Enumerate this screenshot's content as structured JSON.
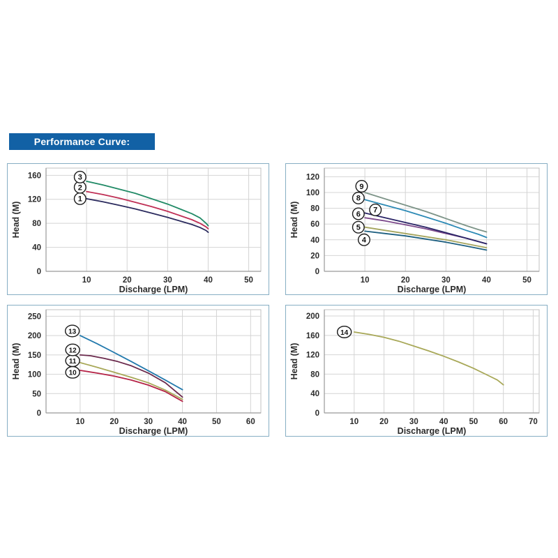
{
  "header": {
    "title": "Performance Curve:",
    "bg_color": "#1261a5",
    "text_color": "#ffffff"
  },
  "styles": {
    "panel_border_color": "#86aec4",
    "grid_color": "#d4d4d4",
    "plot_border_color": "#c0c0c0",
    "axis_color": "#999999",
    "tick_text_color": "#2b2b2b",
    "curve_label_circle_stroke": "#1a1a1a",
    "curve_label_circle_fill": "#ffffff"
  },
  "chart_data": [
    {
      "id": "chart-top-left",
      "type": "line",
      "title": "",
      "xlabel": "Discharge (LPM)",
      "ylabel": "Head (M)",
      "xlim": [
        0,
        53
      ],
      "ylim": [
        0,
        172
      ],
      "xticks": [
        10,
        20,
        30,
        40,
        50
      ],
      "yticks": [
        0,
        40,
        80,
        120,
        160
      ],
      "grid": true,
      "legend": "circled series numbers placed near curve starts",
      "series": [
        {
          "name": "1",
          "color": "#2b2b5e",
          "label_pos": [
            8.4,
            121
          ],
          "points": [
            [
              10,
              121
            ],
            [
              14,
              116
            ],
            [
              18,
              110
            ],
            [
              22,
              104
            ],
            [
              26,
              97
            ],
            [
              30,
              90
            ],
            [
              33,
              84
            ],
            [
              36,
              78
            ],
            [
              38,
              73
            ],
            [
              39.5,
              68
            ],
            [
              40,
              65
            ]
          ]
        },
        {
          "name": "2",
          "color": "#bf2f55",
          "label_pos": [
            8.4,
            140
          ],
          "points": [
            [
              10,
              133
            ],
            [
              14,
              128
            ],
            [
              18,
              122
            ],
            [
              22,
              115
            ],
            [
              26,
              108
            ],
            [
              30,
              100
            ],
            [
              33,
              93
            ],
            [
              36,
              86
            ],
            [
              38,
              80
            ],
            [
              39.5,
              74
            ],
            [
              40,
              71
            ]
          ]
        },
        {
          "name": "3",
          "color": "#218a66",
          "label_pos": [
            8.4,
            157
          ],
          "points": [
            [
              10,
              150
            ],
            [
              14,
              144
            ],
            [
              18,
              137
            ],
            [
              22,
              130
            ],
            [
              26,
              121
            ],
            [
              30,
              112
            ],
            [
              33,
              104
            ],
            [
              36,
              96
            ],
            [
              38,
              89
            ],
            [
              39.5,
              80
            ],
            [
              40,
              76
            ]
          ]
        }
      ]
    },
    {
      "id": "chart-top-right",
      "type": "line",
      "title": "",
      "xlabel": "Discharge (LPM)",
      "ylabel": "Head (M)",
      "xlim": [
        0,
        53
      ],
      "ylim": [
        0,
        131
      ],
      "xticks": [
        10,
        20,
        30,
        40,
        50
      ],
      "yticks": [
        0,
        20,
        40,
        60,
        80,
        100,
        120
      ],
      "grid": true,
      "legend": "circled series numbers placed near curve starts",
      "series": [
        {
          "name": "4",
          "color": "#1d5f80",
          "label_pos": [
            9.8,
            40
          ],
          "points": [
            [
              10,
              51
            ],
            [
              15,
              48
            ],
            [
              20,
              45
            ],
            [
              25,
              41
            ],
            [
              30,
              37
            ],
            [
              35,
              32
            ],
            [
              40,
              27
            ]
          ]
        },
        {
          "name": "5",
          "color": "#a5a55e",
          "label_pos": [
            8.4,
            56
          ],
          "points": [
            [
              10,
              56
            ],
            [
              15,
              52
            ],
            [
              20,
              48
            ],
            [
              25,
              44
            ],
            [
              30,
              40
            ],
            [
              35,
              35
            ],
            [
              40,
              30
            ]
          ]
        },
        {
          "name": "6",
          "color": "#7d4a8c",
          "label_pos": [
            8.4,
            73
          ],
          "points": [
            [
              10,
              68
            ],
            [
              15,
              64
            ],
            [
              20,
              59
            ],
            [
              25,
              54
            ],
            [
              30,
              48
            ],
            [
              35,
              42
            ],
            [
              40,
              35
            ]
          ]
        },
        {
          "name": "7",
          "color": "#2a2466",
          "label_pos": [
            12.6,
            78
          ],
          "points": [
            [
              10,
              74
            ],
            [
              15,
              68
            ],
            [
              20,
              62
            ],
            [
              25,
              56
            ],
            [
              30,
              49
            ],
            [
              35,
              42
            ],
            [
              40,
              35
            ]
          ]
        },
        {
          "name": "8",
          "color": "#2c8ab5",
          "label_pos": [
            8.4,
            93
          ],
          "points": [
            [
              10,
              91
            ],
            [
              15,
              84
            ],
            [
              20,
              77
            ],
            [
              25,
              69
            ],
            [
              30,
              61
            ],
            [
              35,
              52
            ],
            [
              38,
              47
            ],
            [
              40,
              43
            ]
          ]
        },
        {
          "name": "9",
          "color": "#7d9488",
          "label_pos": [
            9.2,
            108
          ],
          "points": [
            [
              10,
              100
            ],
            [
              15,
              92
            ],
            [
              20,
              84
            ],
            [
              25,
              76
            ],
            [
              30,
              67
            ],
            [
              35,
              58
            ],
            [
              38,
              53
            ],
            [
              40,
              50
            ]
          ]
        }
      ]
    },
    {
      "id": "chart-bottom-left",
      "type": "line",
      "title": "",
      "xlabel": "Discharge (LPM)",
      "ylabel": "Head (M)",
      "xlim": [
        0,
        63
      ],
      "ylim": [
        0,
        267
      ],
      "xticks": [
        10,
        20,
        30,
        40,
        50,
        60
      ],
      "yticks": [
        0,
        50,
        100,
        150,
        200,
        250
      ],
      "grid": true,
      "legend": "circled series numbers placed near curve starts",
      "series": [
        {
          "name": "10",
          "color": "#b52347",
          "label_pos": [
            7.8,
            105
          ],
          "points": [
            [
              10,
              110
            ],
            [
              15,
              103
            ],
            [
              20,
              95
            ],
            [
              25,
              85
            ],
            [
              30,
              72
            ],
            [
              35,
              55
            ],
            [
              40,
              30
            ]
          ]
        },
        {
          "name": "11",
          "color": "#a8a858",
          "label_pos": [
            7.8,
            135
          ],
          "points": [
            [
              10,
              130
            ],
            [
              15,
              118
            ],
            [
              20,
              105
            ],
            [
              25,
              92
            ],
            [
              30,
              78
            ],
            [
              35,
              59
            ],
            [
              40,
              35
            ]
          ]
        },
        {
          "name": "12",
          "color": "#6b2a4d",
          "label_pos": [
            7.8,
            163
          ],
          "points": [
            [
              10,
              150
            ],
            [
              13,
              148
            ],
            [
              17,
              141
            ],
            [
              21,
              133
            ],
            [
              25,
              122
            ],
            [
              30,
              103
            ],
            [
              35,
              78
            ],
            [
              40,
              41
            ]
          ]
        },
        {
          "name": "13",
          "color": "#2279ad",
          "label_pos": [
            7.7,
            212
          ],
          "points": [
            [
              10,
              200
            ],
            [
              15,
              179
            ],
            [
              20,
              156
            ],
            [
              25,
              133
            ],
            [
              30,
              109
            ],
            [
              35,
              85
            ],
            [
              40,
              60
            ]
          ]
        }
      ]
    },
    {
      "id": "chart-bottom-right",
      "type": "line",
      "title": "",
      "xlabel": "Discharge (LPM)",
      "ylabel": "Head (M)",
      "xlim": [
        0,
        72
      ],
      "ylim": [
        0,
        213
      ],
      "xticks": [
        10,
        20,
        30,
        40,
        50,
        60,
        70
      ],
      "yticks": [
        0,
        40,
        80,
        120,
        160,
        200
      ],
      "grid": true,
      "legend": "circled series number placed near curve start",
      "series": [
        {
          "name": "14",
          "color": "#a8a858",
          "label_pos": [
            6.7,
            167
          ],
          "points": [
            [
              10,
              167
            ],
            [
              15,
              162
            ],
            [
              20,
              156
            ],
            [
              25,
              148
            ],
            [
              30,
              138
            ],
            [
              35,
              128
            ],
            [
              40,
              117
            ],
            [
              45,
              105
            ],
            [
              50,
              92
            ],
            [
              55,
              77
            ],
            [
              58,
              68
            ],
            [
              60,
              58
            ]
          ]
        }
      ]
    }
  ]
}
